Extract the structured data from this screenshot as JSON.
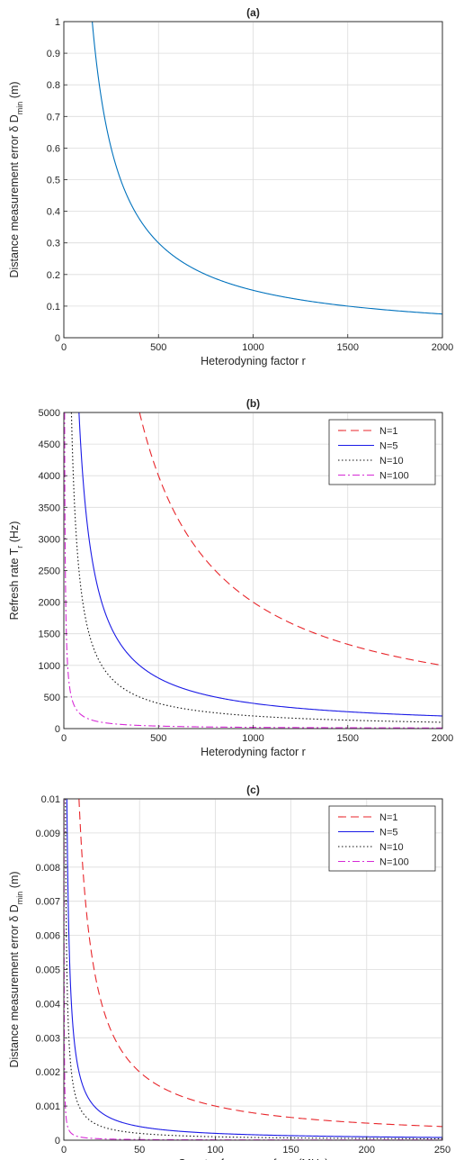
{
  "chart_data": [
    {
      "type": "line",
      "title": "(a)",
      "xlabel": "Heterodyning factor r",
      "ylabel": {
        "main": "Distance measurement error δ D",
        "sub": "min",
        "tail": " (m)"
      },
      "xlim": [
        0,
        2000
      ],
      "ylim": [
        0,
        1
      ],
      "xticks": [
        0,
        500,
        1000,
        1500,
        2000
      ],
      "yticks": [
        0,
        0.1,
        0.2,
        0.3,
        0.4,
        0.5,
        0.6,
        0.7,
        0.8,
        0.9,
        1
      ],
      "ytick_labels": [
        "0",
        "0.1",
        "0.2",
        "0.3",
        "0.4",
        "0.5",
        "0.6",
        "0.7",
        "0.8",
        "0.9",
        "1"
      ],
      "grid": true,
      "legend": null,
      "series": [
        {
          "color": "#0072bd",
          "dash": "solid",
          "k": 150,
          "x_start": 150,
          "x_end": 2000,
          "points": [
            [
              150,
              1.0
            ],
            [
              200,
              0.75
            ],
            [
              300,
              0.5
            ],
            [
              500,
              0.3
            ],
            [
              1000,
              0.15
            ],
            [
              1500,
              0.1
            ],
            [
              2000,
              0.075
            ]
          ]
        }
      ]
    },
    {
      "type": "line",
      "title": "(b)",
      "xlabel": "Heterodyning factor r",
      "ylabel": {
        "main": "Refresh rate T",
        "sub": "r",
        "tail": " (Hz)"
      },
      "xlim": [
        0,
        2000
      ],
      "ylim": [
        0,
        5000
      ],
      "xticks": [
        0,
        500,
        1000,
        1500,
        2000
      ],
      "yticks": [
        0,
        500,
        1000,
        1500,
        2000,
        2500,
        3000,
        3500,
        4000,
        4500,
        5000
      ],
      "ytick_labels": [
        "0",
        "500",
        "1000",
        "1500",
        "2000",
        "2500",
        "3000",
        "3500",
        "4000",
        "4500",
        "5000"
      ],
      "grid": true,
      "legend": "top-right",
      "series": [
        {
          "name": "N=1",
          "color": "#e8262b",
          "dash": "9 5",
          "k": 2000000,
          "x_start": 400,
          "x_end": 2000,
          "points": [
            [
              400,
              5000
            ],
            [
              500,
              4000
            ],
            [
              1000,
              2000
            ],
            [
              1500,
              1333
            ],
            [
              2000,
              1000
            ]
          ]
        },
        {
          "name": "N=5",
          "color": "#1a1ae6",
          "dash": "solid",
          "k": 400000,
          "x_start": 80,
          "x_end": 2000,
          "points": [
            [
              80,
              5000
            ],
            [
              100,
              4000
            ],
            [
              500,
              800
            ],
            [
              1000,
              400
            ],
            [
              2000,
              200
            ]
          ]
        },
        {
          "name": "N=10",
          "color": "#111111",
          "dash": "1.5 2.5",
          "k": 200000,
          "x_start": 40,
          "x_end": 2000,
          "points": [
            [
              40,
              5000
            ],
            [
              100,
              2000
            ],
            [
              500,
              400
            ],
            [
              1000,
              200
            ],
            [
              2000,
              100
            ]
          ]
        },
        {
          "name": "N=100",
          "color": "#d62ad6",
          "dash": "8 3 2 3",
          "k": 20000,
          "x_start": 4,
          "x_end": 2000,
          "points": [
            [
              4,
              5000
            ],
            [
              10,
              2000
            ],
            [
              50,
              400
            ],
            [
              500,
              40
            ],
            [
              2000,
              10
            ]
          ]
        }
      ]
    },
    {
      "type": "line",
      "title": "(c)",
      "xlabel": {
        "main": "Counter frequency f",
        "sub": "clock",
        "tail": " (MHz)"
      },
      "ylabel": {
        "main": "Distance measurement error δ D",
        "sub": "min",
        "tail": " (m)"
      },
      "xlim": [
        0,
        250
      ],
      "ylim": [
        0,
        0.01
      ],
      "xticks": [
        0,
        50,
        100,
        150,
        200,
        250
      ],
      "yticks": [
        0,
        0.001,
        0.002,
        0.003,
        0.004,
        0.005,
        0.006,
        0.007,
        0.008,
        0.009,
        0.01
      ],
      "ytick_labels": [
        "0",
        "0.001",
        "0.002",
        "0.003",
        "0.004",
        "0.005",
        "0.006",
        "0.007",
        "0.008",
        "0.009",
        "0.01"
      ],
      "grid": true,
      "legend": "top-right",
      "series": [
        {
          "name": "N=1",
          "color": "#e8262b",
          "dash": "9 5",
          "k": 0.1,
          "x_start": 10,
          "x_end": 250,
          "points": [
            [
              10,
              0.01
            ],
            [
              25,
              0.004
            ],
            [
              50,
              0.002
            ],
            [
              100,
              0.001
            ],
            [
              200,
              0.0005
            ],
            [
              250,
              0.0004
            ]
          ]
        },
        {
          "name": "N=5",
          "color": "#1a1ae6",
          "dash": "solid",
          "k": 0.02,
          "x_start": 2,
          "x_end": 250,
          "points": [
            [
              2,
              0.01
            ],
            [
              5,
              0.004
            ],
            [
              50,
              0.0004
            ],
            [
              100,
              0.0002
            ],
            [
              250,
              8e-05
            ]
          ]
        },
        {
          "name": "N=10",
          "color": "#111111",
          "dash": "1.5 2.5",
          "k": 0.01,
          "x_start": 1,
          "x_end": 250,
          "points": [
            [
              1,
              0.01
            ],
            [
              5,
              0.002
            ],
            [
              50,
              0.0002
            ],
            [
              100,
              0.0001
            ],
            [
              250,
              4e-05
            ]
          ]
        },
        {
          "name": "N=100",
          "color": "#d62ad6",
          "dash": "8 3 2 3",
          "k": 0.001,
          "x_start": 0.1,
          "x_end": 250,
          "points": [
            [
              0.1,
              0.01
            ],
            [
              1,
              0.001
            ],
            [
              10,
              0.0001
            ],
            [
              250,
              4e-06
            ]
          ]
        }
      ]
    }
  ]
}
